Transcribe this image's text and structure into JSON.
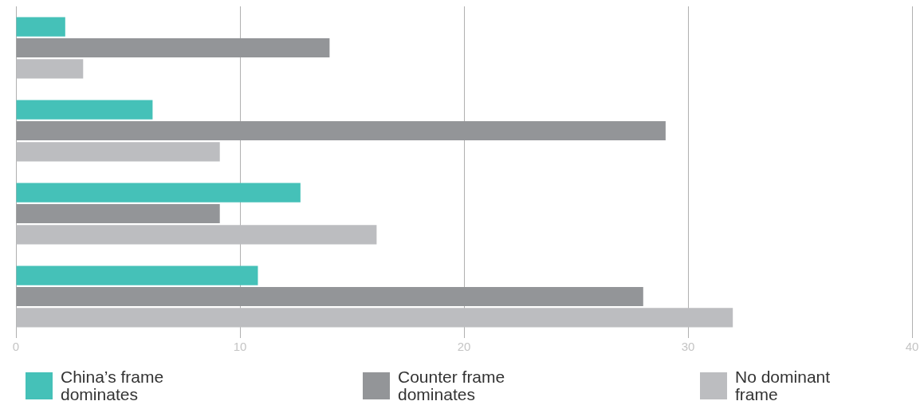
{
  "chart_data": {
    "type": "bar",
    "orientation": "horizontal",
    "categories": [
      null,
      null,
      null,
      null
    ],
    "series": [
      {
        "name": "China’s frame dominates",
        "color": "#45c1b8",
        "values": [
          2.2,
          6.1,
          12.7,
          10.8
        ]
      },
      {
        "name": "Counter frame dominates",
        "color": "#939598",
        "values": [
          14,
          29,
          9.1,
          28
        ]
      },
      {
        "name": "No dominant frame",
        "color": "#bcbdc0",
        "values": [
          3,
          9.1,
          16.1,
          32
        ]
      }
    ],
    "xlim": [
      0,
      40
    ],
    "xticks": [
      0,
      10,
      20,
      30,
      40
    ],
    "grid": "x",
    "legend": "bottom",
    "tick_labels": "x"
  }
}
